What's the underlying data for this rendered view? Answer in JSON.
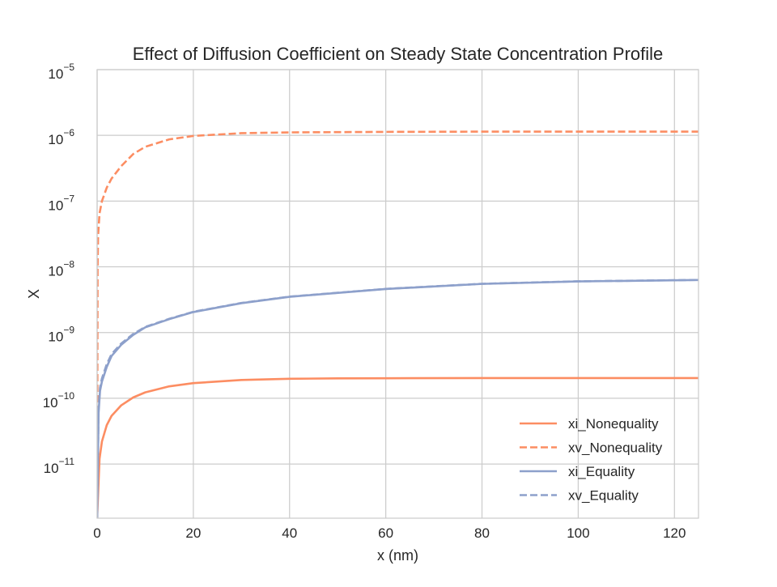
{
  "chart_data": {
    "type": "line",
    "title": "Effect of Diffusion Coefficient on Steady State Concentration Profile",
    "xlabel": "x (nm)",
    "ylabel": "X",
    "xlim": [
      0,
      125
    ],
    "ylim": [
      1.5e-12,
      1e-05
    ],
    "yscale": "log",
    "grid": true,
    "legend_position": "lower-right",
    "x_ticks": [
      0,
      20,
      40,
      60,
      80,
      100,
      120
    ],
    "y_ticks": [
      {
        "base": "10",
        "exp": "−11",
        "value": 1e-11
      },
      {
        "base": "10",
        "exp": "−10",
        "value": 1e-10
      },
      {
        "base": "10",
        "exp": "−9",
        "value": 1e-09
      },
      {
        "base": "10",
        "exp": "−8",
        "value": 1e-08
      },
      {
        "base": "10",
        "exp": "−7",
        "value": 1e-07
      },
      {
        "base": "10",
        "exp": "−6",
        "value": 1e-06
      },
      {
        "base": "10",
        "exp": "−5",
        "value": 1e-05
      }
    ],
    "series": [
      {
        "name": "xi_Nonequality",
        "color": "#fc8d62",
        "dash": "solid",
        "x": [
          0,
          0.5,
          1,
          2,
          3,
          5,
          7.5,
          10,
          15,
          20,
          30,
          40,
          50,
          60,
          80,
          100,
          125
        ],
        "y": [
          1.5e-12,
          1.2e-11,
          2.2e-11,
          3.9e-11,
          5.4e-11,
          7.8e-11,
          1.03e-10,
          1.23e-10,
          1.52e-10,
          1.7e-10,
          1.9e-10,
          1.98e-10,
          2.01e-10,
          2.02e-10,
          2.03e-10,
          2.03e-10,
          2.03e-10
        ]
      },
      {
        "name": "xv_Nonequality",
        "color": "#fc8d62",
        "dash": "dashed",
        "x": [
          0,
          0.1,
          0.2,
          0.5,
          1,
          2,
          3,
          5,
          7.5,
          10,
          15,
          20,
          30,
          40,
          60,
          80,
          100,
          125
        ],
        "y": [
          1.5e-12,
          1e-08,
          3e-08,
          6.5e-08,
          1e-07,
          1.6e-07,
          2.2e-07,
          3.4e-07,
          5.2e-07,
          6.7e-07,
          8.7e-07,
          9.8e-07,
          1.08e-06,
          1.11e-06,
          1.13e-06,
          1.14e-06,
          1.14e-06,
          1.14e-06
        ]
      },
      {
        "name": "xi_Equality",
        "color": "#8da0cb",
        "dash": "solid",
        "x": [
          0,
          0.3,
          0.6,
          1,
          2,
          3,
          5,
          7.5,
          10,
          15,
          20,
          30,
          40,
          60,
          80,
          100,
          125
        ],
        "y": [
          1.5e-12,
          6e-11,
          1.3e-10,
          1.8e-10,
          3e-10,
          4.4e-10,
          6.5e-10,
          9.2e-10,
          1.2e-09,
          1.6e-09,
          2.05e-09,
          2.8e-09,
          3.5e-09,
          4.6e-09,
          5.5e-09,
          6e-09,
          6.3e-09
        ]
      },
      {
        "name": "xv_Equality",
        "color": "#8da0cb",
        "dash": "dashed",
        "x": [
          0,
          0.3,
          0.6,
          1,
          2,
          3,
          5,
          7.5,
          10,
          15,
          20,
          30,
          40,
          60,
          80,
          100,
          125
        ],
        "y": [
          1.5e-12,
          7e-11,
          1.45e-10,
          2e-10,
          3.3e-10,
          4.7e-10,
          6.8e-10,
          9.5e-10,
          1.22e-09,
          1.62e-09,
          2.07e-09,
          2.82e-09,
          3.52e-09,
          4.62e-09,
          5.52e-09,
          6.02e-09,
          6.32e-09
        ]
      }
    ]
  }
}
